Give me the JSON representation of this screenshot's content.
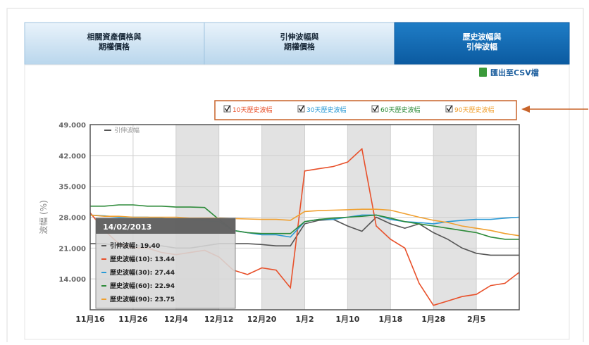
{
  "tabs": [
    {
      "lines": [
        "相關資產價格與",
        "期權價格"
      ]
    },
    {
      "lines": [
        "引伸波幅與",
        "期權價格"
      ]
    },
    {
      "lines": [
        "歷史波幅與",
        "引伸波幅"
      ]
    }
  ],
  "export_label": "匯出至CSV檔",
  "chart_data": {
    "type": "line",
    "y_label": "波幅 (%)",
    "categories": [
      "11月16",
      null,
      null,
      "11月26",
      null,
      null,
      "12月4",
      null,
      null,
      "12月12",
      null,
      null,
      "12月20",
      null,
      null,
      "1月2",
      null,
      null,
      "1月10",
      null,
      null,
      "1月18",
      null,
      null,
      "1月28",
      null,
      null,
      "2月5",
      null,
      null,
      null
    ],
    "series": [
      {
        "name": "引伸波幅",
        "color": "#555555",
        "values": [
          22,
          22,
          21.5,
          21.5,
          21.5,
          21.5,
          21,
          21,
          21.5,
          22,
          22,
          22,
          21.8,
          21.5,
          21.5,
          26.5,
          27.3,
          27.5,
          26,
          24.8,
          28,
          26.5,
          25.5,
          26.5,
          24.5,
          23,
          21,
          19.8,
          19.4,
          19.4,
          19.4
        ]
      },
      {
        "name": "10天歷史波幅",
        "color": "#e8502a",
        "values": [
          29,
          25,
          22,
          21,
          21,
          20,
          19.5,
          20,
          20.5,
          19,
          16,
          15,
          16.5,
          16,
          12,
          38.5,
          39,
          39.5,
          40.5,
          43.5,
          26,
          23,
          21,
          13,
          8,
          9,
          10,
          10.5,
          12.5,
          13,
          15.5
        ]
      },
      {
        "name": "30天歷史波幅",
        "color": "#2a9ad6",
        "values": [
          28.5,
          28.3,
          28,
          28,
          28,
          27.8,
          27.5,
          27.5,
          27.2,
          27,
          25,
          24.5,
          24,
          24,
          23.5,
          27,
          27.5,
          27.5,
          28,
          28.5,
          28.5,
          27.5,
          27,
          26.8,
          26.5,
          27,
          27.3,
          27.5,
          27.5,
          27.8,
          28
        ]
      },
      {
        "name": "60天歷史波幅",
        "color": "#2e8b3a",
        "values": [
          30.5,
          30.5,
          30.8,
          30.8,
          30.5,
          30.5,
          30.3,
          30.3,
          30.2,
          27.5,
          25,
          24.5,
          24.3,
          24.3,
          24.3,
          27,
          27.5,
          27.8,
          28,
          28.2,
          28.5,
          27.8,
          27,
          26.5,
          26,
          25.5,
          25,
          24.5,
          23.5,
          23,
          23
        ]
      },
      {
        "name": "90天歷史波幅",
        "color": "#f0a030",
        "values": [
          28.5,
          28.2,
          28.2,
          28,
          28,
          28,
          28,
          27.8,
          27.8,
          27.8,
          27.7,
          27.6,
          27.5,
          27.5,
          27.3,
          29.3,
          29.5,
          29.6,
          29.7,
          29.8,
          29.8,
          29.6,
          28.8,
          28,
          27.3,
          26.8,
          26,
          25.5,
          25,
          24.3,
          23.8
        ]
      }
    ],
    "ylim": [
      7,
      49
    ],
    "yticks": [
      {
        "value": 14,
        "label": "14.000"
      },
      {
        "value": 21,
        "label": "21.000"
      },
      {
        "value": 28,
        "label": "28.000"
      },
      {
        "value": 35,
        "label": "35.000"
      },
      {
        "value": 42,
        "label": "42.000"
      },
      {
        "value": 49,
        "label": "49.000"
      }
    ],
    "grid": true,
    "tooltip": {
      "title": "14/02/2013",
      "lines": [
        "引伸波幅: 19.40",
        "歷史波幅(10): 13.44",
        "歷史波幅(30): 27.44",
        "歷史波幅(60): 22.94",
        "歷史波幅(90): 23.75"
      ]
    }
  }
}
